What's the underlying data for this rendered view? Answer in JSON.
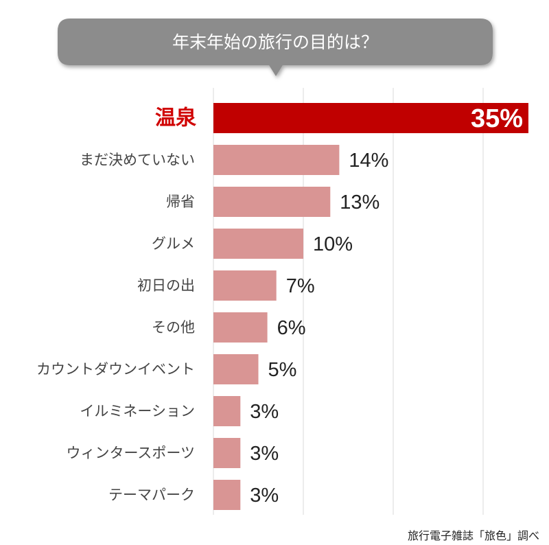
{
  "chart_data": {
    "type": "bar",
    "orientation": "horizontal",
    "title": "年末年始の旅行の目的は？",
    "categories": [
      "温泉",
      "まだ決めていない",
      "帰省",
      "グルメ",
      "初日の出",
      "その他",
      "カウントダウンイベント",
      "イルミネーション",
      "ウィンタースポーツ",
      "テーマパーク"
    ],
    "values": [
      35,
      14,
      13,
      10,
      7,
      6,
      5,
      3,
      3,
      3
    ],
    "value_labels": [
      "35%",
      "14%",
      "13%",
      "10%",
      "7%",
      "6%",
      "5%",
      "3%",
      "3%",
      "3%"
    ],
    "highlight_index": 0,
    "xlim": [
      0,
      35
    ],
    "grid": true,
    "source": "旅行電子雑誌「旅色」調べ",
    "colors": {
      "highlight": "#c00000",
      "bar": "#d99594",
      "title_bubble": "#8c8c8c",
      "highlight_label": "#d00000",
      "grid": "#d9d9d9"
    }
  }
}
